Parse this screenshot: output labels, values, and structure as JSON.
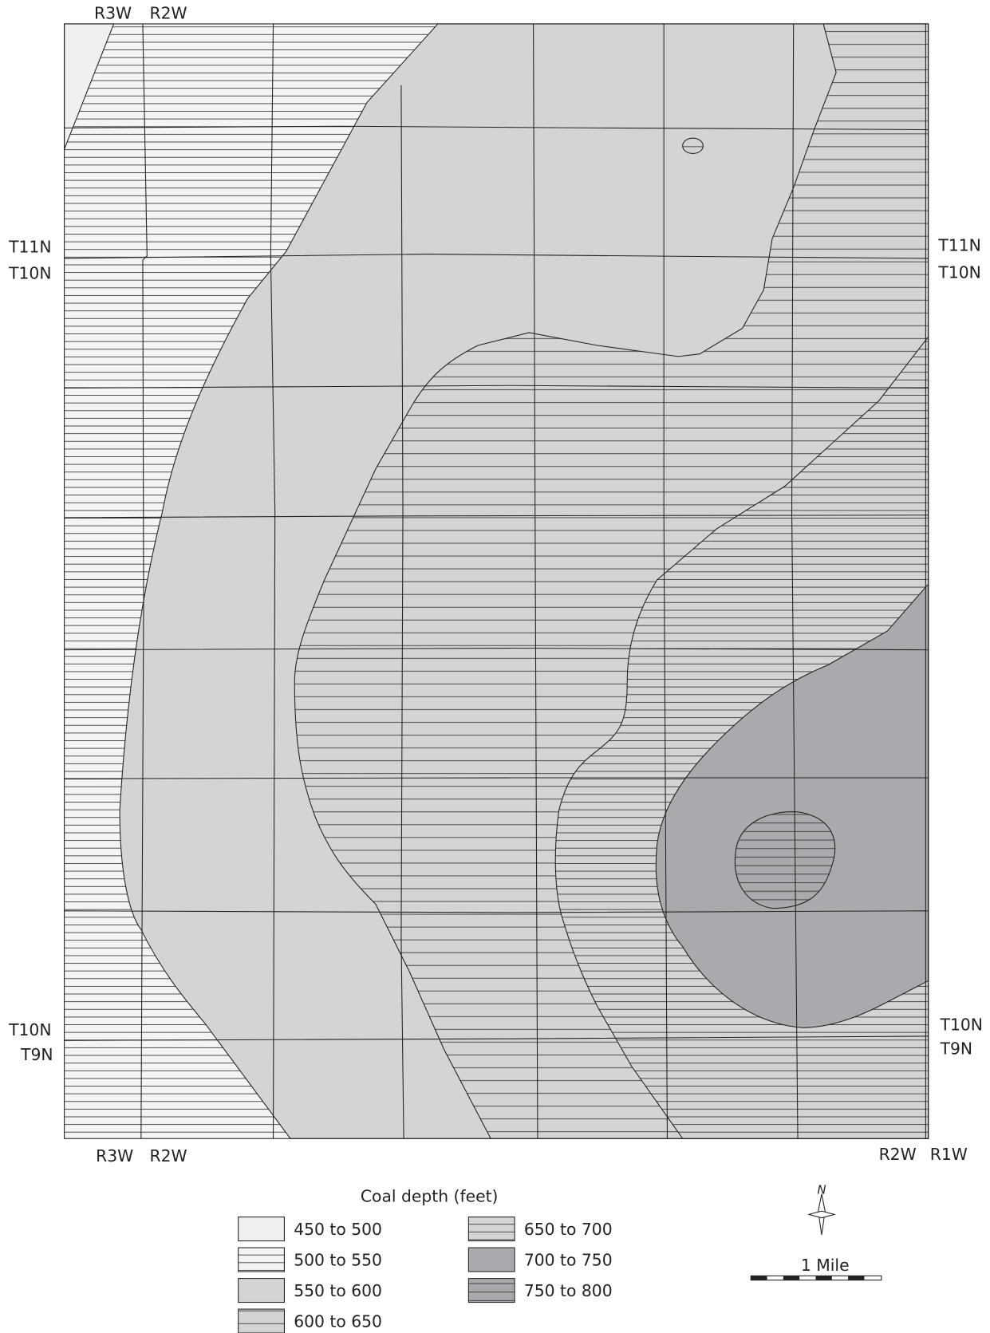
{
  "range_labels_top": [
    "R3W",
    "R2W"
  ],
  "range_labels_bottom": [
    "R3W",
    "R2W",
    "R2W",
    "R1W"
  ],
  "township_labels_left": [
    "T11N",
    "T10N",
    "T10N",
    "T9N"
  ],
  "township_labels_right": [
    "T11N",
    "T10N",
    "T10N",
    "T9N"
  ],
  "legend": {
    "title": "Coal depth (feet)",
    "items": [
      "450 to 500",
      "500 to 550",
      "550 to 600",
      "600 to 650",
      "650 to 700",
      "700 to 750",
      "750 to 800"
    ]
  },
  "north": "N",
  "scale": "1 Mile"
}
